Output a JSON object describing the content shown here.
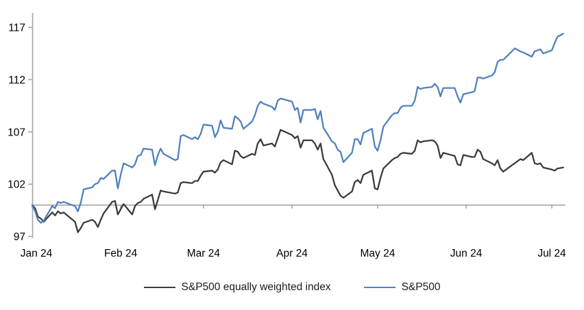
{
  "chart_data": {
    "type": "line",
    "title": "",
    "x_axis": {
      "tick_labels": [
        "Jan 24",
        "Feb 24",
        "Mar 24",
        "Apr 24",
        "May 24",
        "Jun 24",
        "Jul 24"
      ],
      "tick_positions_days": [
        0,
        31,
        60,
        91,
        121,
        152,
        182
      ],
      "domain_days": [
        0,
        186
      ]
    },
    "y_axis": {
      "ticks": [
        97,
        102,
        107,
        112,
        117
      ],
      "range": [
        97,
        117
      ],
      "axis_crosses_at": 100
    },
    "grid": "baseline-only",
    "legend_position": "bottom",
    "axis_color": "#a3a3a3",
    "series": [
      {
        "name": "S&P500 equally weighted index",
        "color": "#3b3b3b",
        "points": [
          [
            0,
            100
          ],
          [
            1,
            99.7
          ],
          [
            2,
            98.9
          ],
          [
            3,
            98.7
          ],
          [
            4,
            98.4
          ],
          [
            7,
            99.3
          ],
          [
            8,
            99.0
          ],
          [
            9,
            99.4
          ],
          [
            10,
            99.2
          ],
          [
            11,
            99.3
          ],
          [
            15,
            98.4
          ],
          [
            16,
            97.4
          ],
          [
            17,
            97.8
          ],
          [
            18,
            98.3
          ],
          [
            21,
            98.6
          ],
          [
            22,
            98.4
          ],
          [
            23,
            97.9
          ],
          [
            24,
            98.6
          ],
          [
            25,
            99.2
          ],
          [
            28,
            100.3
          ],
          [
            29,
            100.4
          ],
          [
            30,
            99.1
          ],
          [
            31,
            99.6
          ],
          [
            32,
            100.1
          ],
          [
            35,
            99.1
          ],
          [
            36,
            99.9
          ],
          [
            37,
            100.2
          ],
          [
            38,
            100.3
          ],
          [
            39,
            100.6
          ],
          [
            42,
            101.0
          ],
          [
            43,
            99.6
          ],
          [
            44,
            100.5
          ],
          [
            45,
            101.4
          ],
          [
            46,
            101.3
          ],
          [
            50,
            101.1
          ],
          [
            51,
            101.2
          ],
          [
            52,
            102.1
          ],
          [
            53,
            102.2
          ],
          [
            56,
            102.1
          ],
          [
            57,
            102.3
          ],
          [
            58,
            102.3
          ],
          [
            59,
            102.8
          ],
          [
            60,
            103.2
          ],
          [
            63,
            103.3
          ],
          [
            64,
            103.1
          ],
          [
            65,
            103.4
          ],
          [
            66,
            104.1
          ],
          [
            67,
            104.3
          ],
          [
            70,
            103.9
          ],
          [
            71,
            105.2
          ],
          [
            72,
            105.1
          ],
          [
            73,
            104.7
          ],
          [
            74,
            104.5
          ],
          [
            77,
            104.9
          ],
          [
            78,
            104.8
          ],
          [
            79,
            105.9
          ],
          [
            80,
            106.3
          ],
          [
            81,
            105.7
          ],
          [
            84,
            105.9
          ],
          [
            85,
            105.6
          ],
          [
            86,
            106.4
          ],
          [
            87,
            107.2
          ],
          [
            91,
            106.7
          ],
          [
            92,
            106.4
          ],
          [
            93,
            106.6
          ],
          [
            94,
            105.5
          ],
          [
            95,
            106.2
          ],
          [
            98,
            106.2
          ],
          [
            99,
            105.9
          ],
          [
            100,
            105.3
          ],
          [
            101,
            105.9
          ],
          [
            102,
            104.4
          ],
          [
            105,
            102.9
          ],
          [
            106,
            101.9
          ],
          [
            107,
            101.4
          ],
          [
            108,
            100.9
          ],
          [
            109,
            100.7
          ],
          [
            112,
            101.3
          ],
          [
            113,
            102.2
          ],
          [
            114,
            102.4
          ],
          [
            115,
            102.1
          ],
          [
            116,
            102.9
          ],
          [
            119,
            103.3
          ],
          [
            120,
            101.6
          ],
          [
            121,
            101.5
          ],
          [
            122,
            102.6
          ],
          [
            123,
            103.5
          ],
          [
            126,
            104.3
          ],
          [
            127,
            104.5
          ],
          [
            128,
            104.6
          ],
          [
            129,
            104.9
          ],
          [
            130,
            105.0
          ],
          [
            133,
            104.9
          ],
          [
            134,
            105.2
          ],
          [
            135,
            106.2
          ],
          [
            136,
            106.0
          ],
          [
            137,
            106.1
          ],
          [
            140,
            106.2
          ],
          [
            141,
            106.1
          ],
          [
            142,
            105.7
          ],
          [
            143,
            104.5
          ],
          [
            144,
            105.0
          ],
          [
            148,
            104.7
          ],
          [
            149,
            103.9
          ],
          [
            150,
            103.8
          ],
          [
            151,
            104.8
          ],
          [
            154,
            104.6
          ],
          [
            155,
            104.6
          ],
          [
            156,
            105.3
          ],
          [
            157,
            105.1
          ],
          [
            158,
            104.4
          ],
          [
            161,
            104.0
          ],
          [
            162,
            103.8
          ],
          [
            163,
            104.3
          ],
          [
            164,
            103.5
          ],
          [
            165,
            103.2
          ],
          [
            168,
            103.8
          ],
          [
            169,
            104.0
          ],
          [
            171,
            104.4
          ],
          [
            172,
            104.3
          ],
          [
            175,
            105.0
          ],
          [
            176,
            104.0
          ],
          [
            177,
            103.9
          ],
          [
            178,
            104.0
          ],
          [
            179,
            103.6
          ],
          [
            182,
            103.4
          ],
          [
            183,
            103.3
          ],
          [
            184,
            103.5
          ],
          [
            186,
            103.6
          ]
        ]
      },
      {
        "name": "S&P500",
        "color": "#4f81bd",
        "points": [
          [
            0,
            100
          ],
          [
            1,
            99.4
          ],
          [
            2,
            98.6
          ],
          [
            3,
            98.3
          ],
          [
            4,
            98.5
          ],
          [
            7,
            99.9
          ],
          [
            8,
            99.7
          ],
          [
            9,
            100.3
          ],
          [
            10,
            100.2
          ],
          [
            11,
            100.3
          ],
          [
            15,
            99.9
          ],
          [
            16,
            99.4
          ],
          [
            17,
            100.2
          ],
          [
            18,
            101.5
          ],
          [
            21,
            101.7
          ],
          [
            22,
            102.0
          ],
          [
            23,
            102.1
          ],
          [
            24,
            102.6
          ],
          [
            25,
            102.5
          ],
          [
            28,
            103.3
          ],
          [
            29,
            103.3
          ],
          [
            30,
            101.6
          ],
          [
            31,
            102.9
          ],
          [
            32,
            104.0
          ],
          [
            35,
            103.6
          ],
          [
            36,
            103.9
          ],
          [
            37,
            104.7
          ],
          [
            38,
            104.8
          ],
          [
            39,
            105.4
          ],
          [
            42,
            105.3
          ],
          [
            43,
            103.8
          ],
          [
            44,
            104.8
          ],
          [
            45,
            105.4
          ],
          [
            46,
            104.9
          ],
          [
            50,
            104.3
          ],
          [
            51,
            104.4
          ],
          [
            52,
            106.6
          ],
          [
            53,
            106.7
          ],
          [
            56,
            106.3
          ],
          [
            57,
            106.5
          ],
          [
            58,
            106.3
          ],
          [
            59,
            106.8
          ],
          [
            60,
            107.7
          ],
          [
            63,
            107.6
          ],
          [
            64,
            106.5
          ],
          [
            65,
            107.0
          ],
          [
            66,
            108.1
          ],
          [
            67,
            107.4
          ],
          [
            70,
            107.3
          ],
          [
            71,
            108.5
          ],
          [
            72,
            108.3
          ],
          [
            73,
            108.0
          ],
          [
            74,
            107.3
          ],
          [
            77,
            108.0
          ],
          [
            78,
            108.6
          ],
          [
            79,
            109.5
          ],
          [
            80,
            109.9
          ],
          [
            81,
            109.7
          ],
          [
            84,
            109.4
          ],
          [
            85,
            109.1
          ],
          [
            86,
            110.0
          ],
          [
            87,
            110.2
          ],
          [
            91,
            109.9
          ],
          [
            92,
            109.1
          ],
          [
            93,
            109.3
          ],
          [
            94,
            107.9
          ],
          [
            95,
            109.1
          ],
          [
            98,
            109.1
          ],
          [
            99,
            109.2
          ],
          [
            100,
            108.2
          ],
          [
            101,
            109.0
          ],
          [
            102,
            107.4
          ],
          [
            105,
            106.1
          ],
          [
            106,
            105.9
          ],
          [
            107,
            105.3
          ],
          [
            108,
            105.1
          ],
          [
            109,
            104.1
          ],
          [
            112,
            105.0
          ],
          [
            113,
            106.3
          ],
          [
            114,
            106.3
          ],
          [
            115,
            105.8
          ],
          [
            116,
            106.9
          ],
          [
            119,
            107.3
          ],
          [
            120,
            105.6
          ],
          [
            121,
            105.2
          ],
          [
            122,
            106.2
          ],
          [
            123,
            107.5
          ],
          [
            126,
            108.6
          ],
          [
            127,
            108.8
          ],
          [
            128,
            108.8
          ],
          [
            129,
            109.3
          ],
          [
            130,
            109.5
          ],
          [
            133,
            109.5
          ],
          [
            134,
            110.0
          ],
          [
            135,
            111.3
          ],
          [
            136,
            111.1
          ],
          [
            137,
            111.2
          ],
          [
            140,
            111.3
          ],
          [
            141,
            111.6
          ],
          [
            142,
            111.3
          ],
          [
            143,
            110.4
          ],
          [
            144,
            111.2
          ],
          [
            148,
            111.2
          ],
          [
            149,
            110.4
          ],
          [
            150,
            109.8
          ],
          [
            151,
            110.6
          ],
          [
            154,
            110.8
          ],
          [
            155,
            110.9
          ],
          [
            156,
            112.2
          ],
          [
            157,
            112.2
          ],
          [
            158,
            112.1
          ],
          [
            161,
            112.4
          ],
          [
            162,
            112.7
          ],
          [
            163,
            113.7
          ],
          [
            164,
            113.9
          ],
          [
            165,
            113.9
          ],
          [
            168,
            114.7
          ],
          [
            169,
            115.0
          ],
          [
            171,
            114.7
          ],
          [
            172,
            114.6
          ],
          [
            175,
            114.2
          ],
          [
            176,
            114.7
          ],
          [
            177,
            114.8
          ],
          [
            178,
            114.9
          ],
          [
            179,
            114.5
          ],
          [
            182,
            114.8
          ],
          [
            183,
            115.5
          ],
          [
            184,
            116.1
          ],
          [
            186,
            116.4
          ]
        ]
      }
    ]
  }
}
